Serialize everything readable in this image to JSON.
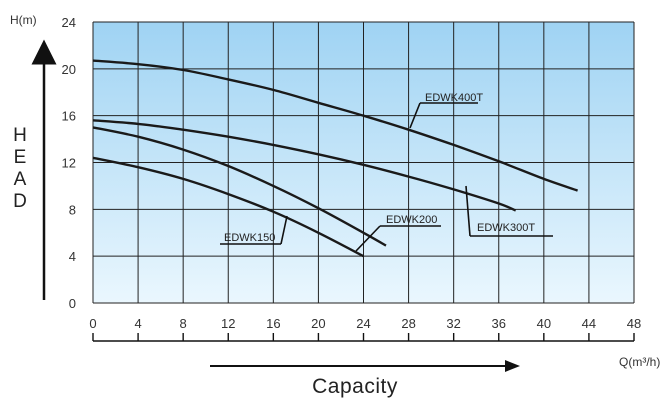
{
  "chart_data": {
    "type": "line",
    "title": "",
    "ylabel_top": "H(m)",
    "ylabel_vertical": "HEAD",
    "xlabel_unit": "Q(m³/h)",
    "xlabel": "Capacity",
    "xlim": [
      0,
      48
    ],
    "ylim": [
      0,
      24
    ],
    "x_ticks": [
      0,
      4,
      8,
      12,
      16,
      20,
      24,
      28,
      32,
      36,
      40,
      44,
      48
    ],
    "y_ticks": [
      0,
      4,
      8,
      12,
      16,
      20,
      24
    ],
    "grid": true,
    "colors": {
      "background_top": "#9fd3f3",
      "background_bottom": "#eaf7fe",
      "grid": "#222222",
      "line": "#1a1a1a"
    },
    "series": [
      {
        "name": "EDWK400T",
        "x": [
          0,
          4,
          8,
          12,
          16,
          20,
          24,
          28,
          32,
          36,
          40,
          43
        ],
        "y": [
          20.7,
          20.4,
          19.9,
          19.1,
          18.2,
          17.1,
          16.0,
          14.8,
          13.5,
          12.1,
          10.6,
          9.6
        ]
      },
      {
        "name": "EDWK300T",
        "x": [
          0,
          4,
          8,
          12,
          16,
          20,
          24,
          28,
          32,
          36,
          37.5
        ],
        "y": [
          15.6,
          15.3,
          14.8,
          14.2,
          13.5,
          12.7,
          11.8,
          10.8,
          9.7,
          8.5,
          7.9
        ]
      },
      {
        "name": "EDWK200",
        "x": [
          0,
          4,
          8,
          12,
          16,
          20,
          24,
          26
        ],
        "y": [
          15.0,
          14.2,
          13.1,
          11.7,
          10.0,
          8.1,
          6.0,
          4.9
        ]
      },
      {
        "name": "EDWK150",
        "x": [
          0,
          4,
          8,
          12,
          16,
          20,
          24
        ],
        "y": [
          12.4,
          11.6,
          10.6,
          9.3,
          7.8,
          6.0,
          4.0
        ]
      }
    ]
  }
}
